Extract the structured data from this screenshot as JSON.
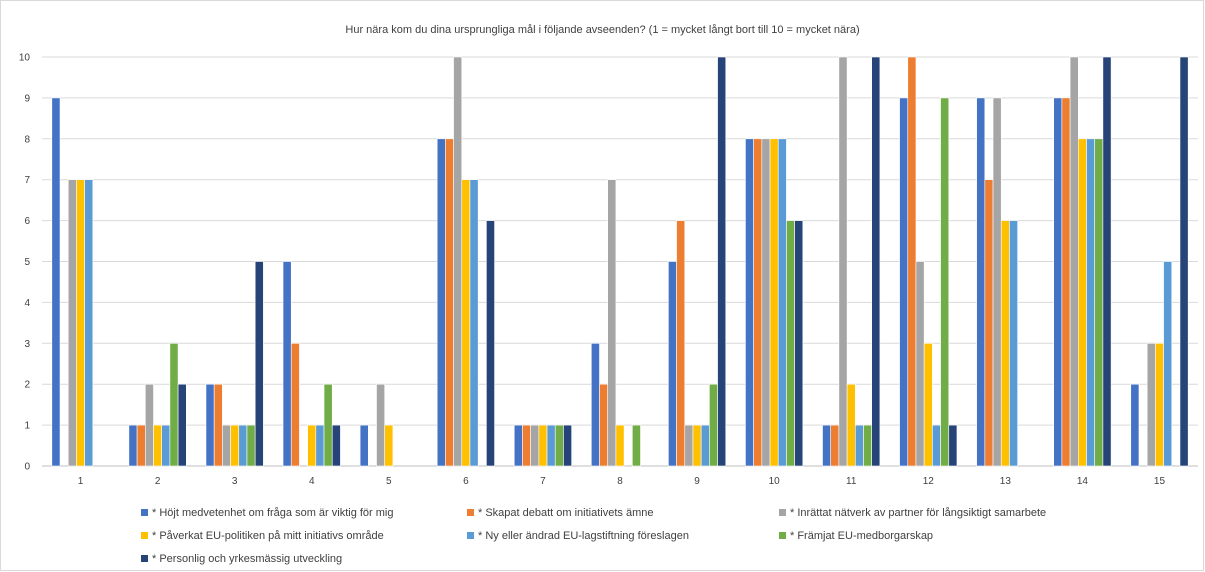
{
  "chart_data": {
    "type": "bar",
    "title": "Hur nära kom du dina ursprungliga mål i följande avseenden? (1 = mycket långt bort till 10 = mycket nära)",
    "xlabel": "",
    "ylabel": "",
    "ylim": [
      0,
      10
    ],
    "yticks": [
      "0",
      "1",
      "2",
      "3",
      "4",
      "5",
      "6",
      "7",
      "8",
      "9",
      "10"
    ],
    "grid": true,
    "legend_position": "bottom",
    "categories": [
      "1",
      "2",
      "3",
      "4",
      "5",
      "6",
      "7",
      "8",
      "9",
      "10",
      "11",
      "12",
      "13",
      "14",
      "15"
    ],
    "series": [
      {
        "name": "* Höjt medvetenhet om fråga som är viktig för mig",
        "color": "#4472c4",
        "values": [
          9,
          1,
          2,
          5,
          1,
          8,
          1,
          3,
          5,
          8,
          1,
          9,
          9,
          9,
          2
        ]
      },
      {
        "name": "* Skapat debatt om initiativets ämne",
        "color": "#ed7d31",
        "values": [
          0,
          1,
          2,
          3,
          0,
          8,
          1,
          2,
          6,
          8,
          1,
          10,
          7,
          9,
          0
        ]
      },
      {
        "name": "* Inrättat nätverk av partner för långsiktigt samarbete",
        "color": "#a5a5a5",
        "values": [
          7,
          2,
          1,
          0,
          2,
          10,
          1,
          7,
          1,
          8,
          10,
          5,
          9,
          10,
          3
        ]
      },
      {
        "name": "* Påverkat EU-politiken på mitt initiativs område",
        "color": "#ffc000",
        "values": [
          7,
          1,
          1,
          1,
          1,
          7,
          1,
          1,
          1,
          8,
          2,
          3,
          6,
          8,
          3
        ]
      },
      {
        "name": "* Ny eller ändrad EU-lagstiftning föreslagen",
        "color": "#5b9bd5",
        "values": [
          7,
          1,
          1,
          1,
          0,
          7,
          1,
          0,
          1,
          8,
          1,
          1,
          6,
          8,
          5
        ]
      },
      {
        "name": "* Främjat EU-medborgarskap",
        "color": "#70ad47",
        "values": [
          0,
          3,
          1,
          2,
          0,
          0,
          1,
          1,
          2,
          6,
          1,
          9,
          0,
          8,
          0
        ]
      },
      {
        "name": "* Personlig och yrkesmässig utveckling",
        "color": "#264478",
        "values": [
          0,
          2,
          5,
          1,
          0,
          6,
          1,
          0,
          10,
          6,
          10,
          1,
          0,
          10,
          10
        ]
      }
    ]
  }
}
